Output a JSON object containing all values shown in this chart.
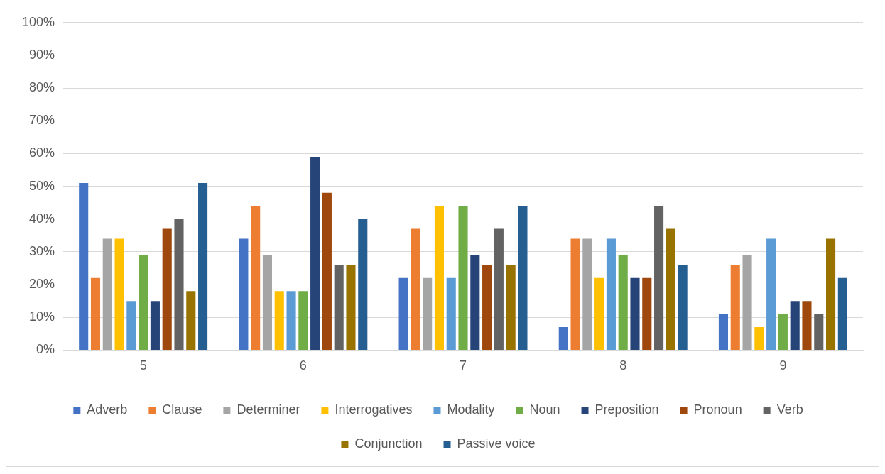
{
  "chart_data": {
    "type": "bar",
    "categories": [
      "5",
      "6",
      "7",
      "8",
      "9"
    ],
    "series": [
      {
        "name": "Adverb",
        "color": "#4472c4",
        "values": [
          51,
          34,
          22,
          7,
          11
        ]
      },
      {
        "name": "Clause",
        "color": "#ed7d31",
        "values": [
          22,
          44,
          37,
          34,
          26
        ]
      },
      {
        "name": "Determiner",
        "color": "#a5a5a5",
        "values": [
          34,
          29,
          22,
          34,
          29
        ]
      },
      {
        "name": "Interrogatives",
        "color": "#ffc000",
        "values": [
          34,
          18,
          44,
          22,
          7
        ]
      },
      {
        "name": "Modality",
        "color": "#5b9bd5",
        "values": [
          15,
          18,
          22,
          34,
          34
        ]
      },
      {
        "name": "Noun",
        "color": "#70ad47",
        "values": [
          29,
          18,
          44,
          29,
          11
        ]
      },
      {
        "name": "Preposition",
        "color": "#264478",
        "values": [
          15,
          59,
          29,
          22,
          15
        ]
      },
      {
        "name": "Pronoun",
        "color": "#9e480e",
        "values": [
          37,
          48,
          26,
          22,
          15
        ]
      },
      {
        "name": "Verb",
        "color": "#636363",
        "values": [
          40,
          26,
          37,
          44,
          11
        ]
      },
      {
        "name": "Conjunction",
        "color": "#997300",
        "values": [
          18,
          26,
          26,
          37,
          34
        ]
      },
      {
        "name": "Passive voice",
        "color": "#255e91",
        "values": [
          51,
          40,
          44,
          26,
          22
        ]
      }
    ],
    "ylim": [
      0,
      100
    ],
    "yticks": [
      {
        "value": 0,
        "label": "0%"
      },
      {
        "value": 10,
        "label": "10%"
      },
      {
        "value": 20,
        "label": "20%"
      },
      {
        "value": 30,
        "label": "30%"
      },
      {
        "value": 40,
        "label": "40%"
      },
      {
        "value": 50,
        "label": "50%"
      },
      {
        "value": 60,
        "label": "60%"
      },
      {
        "value": 70,
        "label": "70%"
      },
      {
        "value": 80,
        "label": "80%"
      },
      {
        "value": 90,
        "label": "90%"
      },
      {
        "value": 100,
        "label": "100%"
      }
    ],
    "grid": "y",
    "legend": "bottom"
  }
}
